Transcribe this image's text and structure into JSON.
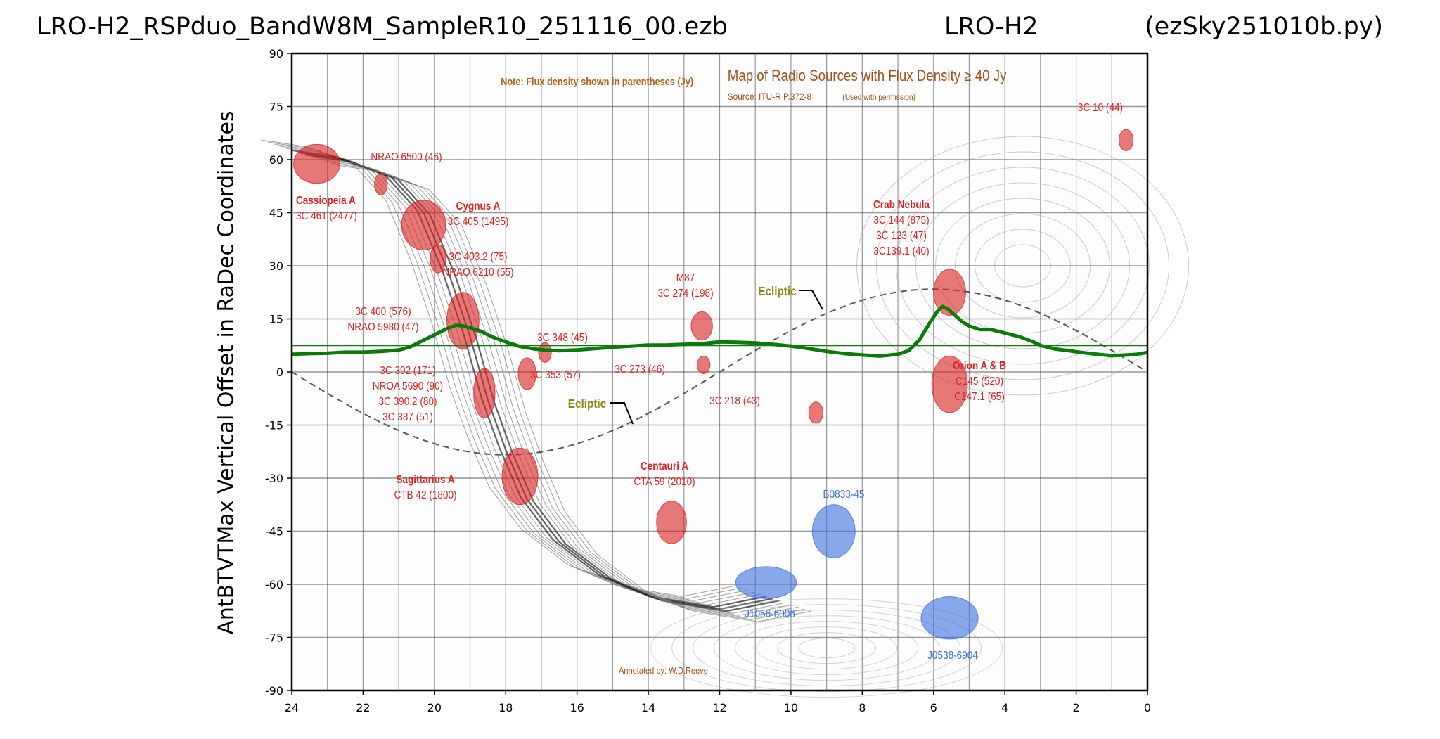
{
  "header": {
    "file_title": "LRO-H2_RSPduo_BandW8M_SampleR10_251116_00.ezb",
    "station": "LRO-H2",
    "script": "(ezSky251010b.py)"
  },
  "chart_data": {
    "type": "line",
    "title": "",
    "xlabel": "",
    "ylabel": "AntBTVTMax Vertical Offset in RaDec Coordinates",
    "xlim": [
      24,
      0
    ],
    "ylim": [
      -90,
      90
    ],
    "x_ticks": [
      "24",
      "22",
      "20",
      "18",
      "16",
      "14",
      "12",
      "10",
      "8",
      "6",
      "4",
      "2",
      "0"
    ],
    "y_ticks": [
      "90",
      "75",
      "60",
      "45",
      "30",
      "15",
      "0",
      "-15",
      "-30",
      "-45",
      "-60",
      "-75",
      "-90"
    ],
    "grid": true,
    "background": "radio sky contour map (RA hours vs Dec degrees)",
    "series": [
      {
        "color": "#0a7a0a",
        "x": [
          24,
          23.5,
          23,
          22.5,
          22,
          21.5,
          21,
          20.7,
          20.4,
          20,
          19.7,
          19.4,
          19.2,
          19,
          18.7,
          18.4,
          18,
          17.6,
          17.2,
          16.9,
          16.5,
          16,
          15.5,
          15,
          14.5,
          14,
          13.5,
          13,
          12.5,
          12,
          11.5,
          11,
          10.5,
          10,
          9.5,
          9,
          8.5,
          8,
          7.5,
          7,
          6.7,
          6.4,
          6.1,
          5.9,
          5.75,
          5.6,
          5.4,
          5.2,
          5,
          4.7,
          4.4,
          4,
          3.6,
          3.2,
          3,
          2.6,
          2.2,
          2,
          1.6,
          1.2,
          1,
          0.6,
          0.3,
          0
        ],
        "y": [
          5,
          5.2,
          5.3,
          5.6,
          5.6,
          5.8,
          6.2,
          7,
          8.5,
          10.5,
          12,
          13.2,
          13,
          12.5,
          11.5,
          10,
          8.5,
          7.2,
          6.5,
          6.2,
          6,
          6.2,
          6.6,
          7,
          7.3,
          7.6,
          7.6,
          7.8,
          8,
          8.5,
          8.4,
          8.2,
          7.8,
          7.3,
          6.6,
          5.8,
          5.2,
          4.8,
          4.5,
          5,
          6,
          9,
          14,
          17,
          18.5,
          17.8,
          16,
          14.2,
          13,
          12,
          12,
          11,
          10,
          8.5,
          7.5,
          6.5,
          6,
          5.7,
          5.2,
          4.8,
          4.6,
          4.8,
          5,
          5.5
        ]
      },
      {
        "color": "#0a7a0a",
        "x": [
          24,
          0
        ],
        "y": [
          7.5,
          7.5
        ]
      }
    ],
    "ecliptic_label": "Ecliptic",
    "map_annotations": {
      "map_title": "Map of Radio Sources with Flux Density ≥ 40 Jy",
      "source": "Source: ITU-R P.372-8",
      "permission": "(Used with permission)",
      "note": "Note: Flux density shown in parentheses (Jy)",
      "annotated_by": "Annotated by: W.D.Reeve"
    },
    "sources": [
      {
        "lines": [
          "Cassiopeia A",
          "3C 461 (2477)"
        ],
        "ra": 23.3,
        "dec": 58.8,
        "rx": 0.65,
        "ry": 5.5,
        "color": "#d92020"
      },
      {
        "lines": [
          "NRAO 6500 (46)"
        ],
        "ra": 21.5,
        "dec": 53,
        "rx": 0.18,
        "ry": 3,
        "color": "#d92020"
      },
      {
        "lines": [
          "Cygnus A",
          "3C 405 (1495)"
        ],
        "ra": 20.3,
        "dec": 41.5,
        "rx": 0.62,
        "ry": 7,
        "color": "#d92020"
      },
      {
        "lines": [
          "3C 403.2 (75)",
          "NRAO 6210 (55)"
        ],
        "ra": 19.9,
        "dec": 32,
        "rx": 0.22,
        "ry": 4,
        "color": "#d92020"
      },
      {
        "lines": [
          "3C 400 (576)",
          "NRAO 5980 (47)"
        ],
        "ra": 19.2,
        "dec": 14.5,
        "rx": 0.45,
        "ry": 8,
        "color": "#d92020"
      },
      {
        "lines": [
          "3C 392 (171)",
          "NROA 5690 (90)",
          "3C 390.2 (80)",
          "3C 387  (51)"
        ],
        "ra": 18.6,
        "dec": -6,
        "rx": 0.3,
        "ry": 7,
        "color": "#d92020"
      },
      {
        "lines": [
          "3C 353 (57)"
        ],
        "ra": 17.4,
        "dec": -0.5,
        "rx": 0.25,
        "ry": 4.5,
        "color": "#d92020"
      },
      {
        "lines": [
          "3C 348 (45)"
        ],
        "ra": 16.9,
        "dec": 5.5,
        "rx": 0.18,
        "ry": 2.8,
        "color": "#d92020"
      },
      {
        "lines": [
          "M87",
          "3C 274 (198)"
        ],
        "ra": 12.5,
        "dec": 13,
        "rx": 0.3,
        "ry": 4,
        "color": "#d92020"
      },
      {
        "lines": [
          "3C 273 (46)"
        ],
        "ra": 12.45,
        "dec": 2,
        "rx": 0.18,
        "ry": 2.5,
        "color": "#d92020"
      },
      {
        "lines": [
          "3C 218 (43)"
        ],
        "ra": 9.3,
        "dec": -11.5,
        "rx": 0.2,
        "ry": 3,
        "color": "#d92020"
      },
      {
        "lines": [
          "Sagittarius A",
          "CTB 42 (1800)"
        ],
        "ra": 17.6,
        "dec": -29.5,
        "rx": 0.5,
        "ry": 8,
        "color": "#d92020"
      },
      {
        "lines": [
          "Centauri A",
          "CTA 59 (2010)"
        ],
        "ra": 13.35,
        "dec": -42.5,
        "rx": 0.42,
        "ry": 6,
        "color": "#d92020"
      },
      {
        "lines": [
          "Crab Nebula",
          "3C 144 (875)",
          "3C 123 (47)",
          "3C139.1 (40)"
        ],
        "ra": 5.55,
        "dec": 22.5,
        "rx": 0.45,
        "ry": 6.5,
        "color": "#d92020"
      },
      {
        "lines": [
          "Orion A & B",
          "C145 (520)",
          "C147.1 (65)"
        ],
        "ra": 5.55,
        "dec": -3.5,
        "rx": 0.5,
        "ry": 8,
        "color": "#d92020"
      },
      {
        "lines": [
          "3C 10 (44)"
        ],
        "ra": 0.6,
        "dec": 65.5,
        "rx": 0.2,
        "ry": 3,
        "color": "#d92020"
      },
      {
        "lines": [
          "B0833-45"
        ],
        "ra": 8.8,
        "dec": -45,
        "rx": 0.6,
        "ry": 7.5,
        "color": "#3a6fe0"
      },
      {
        "lines": [
          "J1056-6006"
        ],
        "ra": 10.7,
        "dec": -59.5,
        "rx": 0.85,
        "ry": 4.5,
        "color": "#3a6fe0"
      },
      {
        "lines": [
          "J0538-6904"
        ],
        "ra": 5.55,
        "dec": -69.5,
        "rx": 0.8,
        "ry": 6,
        "color": "#3a6fe0"
      }
    ]
  }
}
